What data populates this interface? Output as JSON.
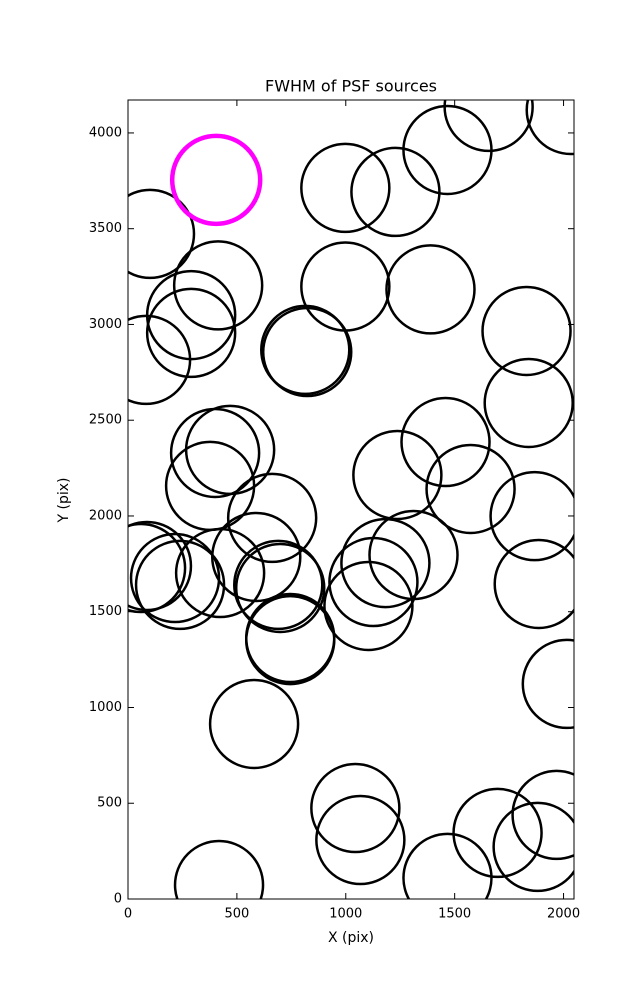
{
  "chart_data": {
    "type": "scatter",
    "title": "FWHM of PSF sources",
    "x_label": "X (pix)",
    "y_label": "Y (pix)",
    "xlim": [
      0,
      2048
    ],
    "ylim": [
      0,
      4172
    ],
    "xticks": [
      0,
      500,
      1000,
      1500,
      2000
    ],
    "yticks": [
      0,
      500,
      1000,
      1500,
      2000,
      2500,
      3000,
      3500,
      4000
    ],
    "series": [
      {
        "color": "#000000",
        "x": [
          101,
          414,
          290,
          290,
          83,
          814,
          823,
          998,
          1389,
          998,
          1228,
          1467,
          1656,
          2033,
          1830,
          1840,
          1458,
          1573,
          1237,
          469,
          400,
          377,
          662,
          589,
          423,
          87,
          60,
          216,
          239,
          690,
          699,
          745,
          745,
          1311,
          1182,
          1127,
          1104,
          1867,
          1886,
          2015,
          579,
          1044,
          1067,
          418,
          1467,
          1697,
          1968,
          1881
        ],
        "y": [
          3473,
          3204,
          3049,
          2956,
          2815,
          2867,
          2856,
          3198,
          3183,
          3713,
          3692,
          3911,
          4136,
          4120,
          2966,
          2590,
          2386,
          2141,
          2214,
          2345,
          2329,
          2157,
          1990,
          1786,
          1702,
          1739,
          1728,
          1676,
          1640,
          1640,
          1624,
          1352,
          1363,
          1796,
          1754,
          1655,
          1530,
          1999,
          1645,
          1123,
          914,
          475,
          308,
          73,
          110,
          345,
          439,
          272
        ]
      },
      {
        "color": "#ff00ff",
        "x": [
          405
        ],
        "y": [
          3755
        ]
      }
    ]
  }
}
